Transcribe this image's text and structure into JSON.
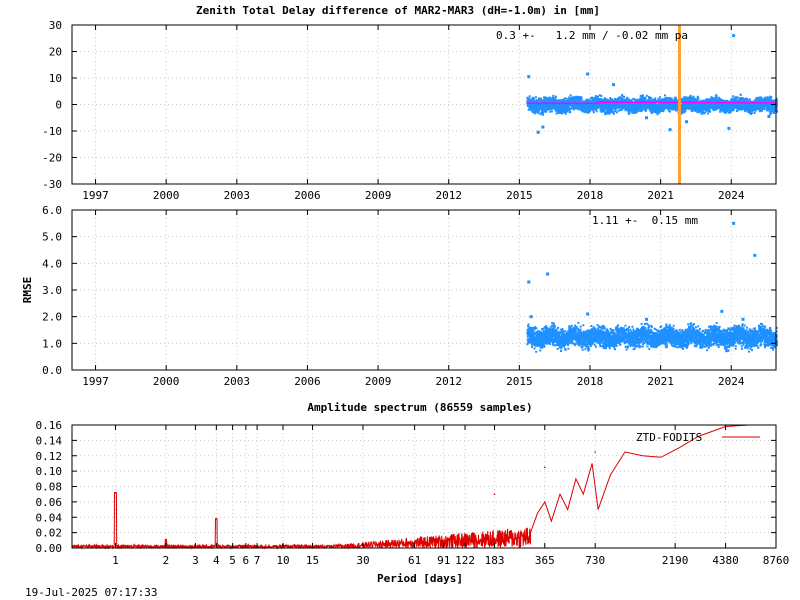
{
  "chart_data": [
    {
      "type": "scatter",
      "title": "Zenith Total Delay difference of MAR2-MAR3 (dH=-1.0m) in [mm]",
      "ylabel": "",
      "xlim": [
        1996.0,
        2025.9
      ],
      "ylim": [
        -30,
        30
      ],
      "yticks": [
        30,
        20,
        10,
        0,
        -10,
        -20,
        -30
      ],
      "xticks": [
        1997,
        2000,
        2003,
        2006,
        2009,
        2012,
        2015,
        2018,
        2021,
        2024
      ],
      "stats_label": "0.3 +-   1.2 mm / -0.02 mm pa",
      "data_start": 2015.3,
      "data_end": 2025.9,
      "mean": 0.3,
      "band": [
        -3.5,
        4.0
      ],
      "trend_line": [
        [
          2015.3,
          0.5
        ],
        [
          2018.3,
          0.4
        ],
        [
          2018.4,
          0.9
        ],
        [
          2025.9,
          0.6
        ]
      ],
      "event_line_x": 2021.8,
      "outliers": [
        [
          2015.4,
          10.5
        ],
        [
          2017.9,
          11.5
        ],
        [
          2024.1,
          26.0
        ],
        [
          2015.8,
          -10.5
        ],
        [
          2016.0,
          -8.5
        ],
        [
          2020.4,
          -5.0
        ],
        [
          2021.4,
          -9.5
        ],
        [
          2023.9,
          -9.0
        ],
        [
          2022.1,
          -6.5
        ],
        [
          2019.0,
          7.5
        ],
        [
          2025.6,
          -4.5
        ]
      ]
    },
    {
      "type": "scatter",
      "ylabel": "RMSE",
      "xlim": [
        1996.0,
        2025.9
      ],
      "ylim": [
        0,
        6
      ],
      "yticks": [
        "6.0",
        "5.0",
        "4.0",
        "3.0",
        "2.0",
        "1.0",
        "0.0"
      ],
      "xticks": [
        1997,
        2000,
        2003,
        2006,
        2009,
        2012,
        2015,
        2018,
        2021,
        2024
      ],
      "stats_label": "1.11 +-  0.15 mm",
      "data_start": 2015.3,
      "data_end": 2025.9,
      "mean": 1.1,
      "band": [
        0.75,
        1.8
      ],
      "outliers": [
        [
          2015.4,
          3.3
        ],
        [
          2016.2,
          3.6
        ],
        [
          2024.1,
          5.5
        ],
        [
          2025.0,
          4.3
        ],
        [
          2023.6,
          2.2
        ],
        [
          2017.9,
          2.1
        ],
        [
          2015.5,
          2.0
        ],
        [
          2020.4,
          1.9
        ],
        [
          2024.5,
          1.9
        ]
      ]
    },
    {
      "type": "line",
      "title": "Amplitude spectrum (86559 samples)",
      "xlabel": "Period [days]",
      "ylim": [
        0,
        0.16
      ],
      "yticks": [
        "0.16",
        "0.14",
        "0.12",
        "0.10",
        "0.08",
        "0.06",
        "0.04",
        "0.02",
        "0.00"
      ],
      "xlim_days": [
        0.55,
        8760
      ],
      "xticks": [
        "1",
        "2",
        "3",
        "4",
        "5",
        "6",
        "7",
        "10",
        "15",
        "30",
        "61",
        "91",
        "122",
        "183",
        "365",
        "730",
        "2190",
        "4380",
        "8760"
      ],
      "xtick_values": [
        1,
        2,
        3,
        4,
        5,
        6,
        7,
        10,
        15,
        30,
        61,
        91,
        122,
        183,
        365,
        730,
        2190,
        4380,
        8760
      ],
      "legend": "ZTD-FODITS",
      "legend_position": "top-right",
      "series_color": "#dd0000",
      "peaks": [
        [
          1,
          0.072
        ],
        [
          2,
          0.008
        ],
        [
          4,
          0.038
        ],
        [
          183,
          0.07
        ],
        [
          365,
          0.105
        ],
        [
          730,
          0.125
        ],
        [
          4380,
          0.16
        ]
      ]
    }
  ],
  "footer": {
    "timestamp": "19-Jul-2025 07:17:33"
  },
  "colors": {
    "points": "#1e90ff",
    "trend": "#ff00ff",
    "event": "#ffa030"
  }
}
